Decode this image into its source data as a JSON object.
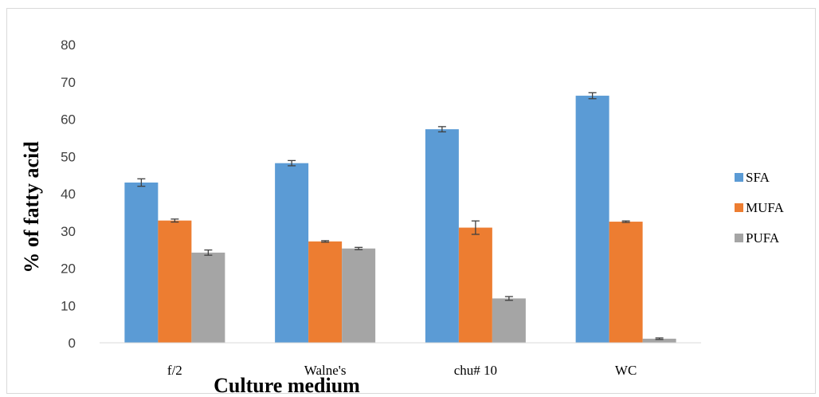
{
  "chart_data": {
    "type": "bar",
    "categories": [
      "f/2",
      "Walne's",
      "chu# 10",
      "WC"
    ],
    "series": [
      {
        "name": "SFA",
        "color": "#5b9bd5",
        "values": [
          43.0,
          48.2,
          57.3,
          66.3
        ],
        "errors": [
          1.0,
          0.7,
          0.7,
          0.8
        ]
      },
      {
        "name": "MUFA",
        "color": "#ed7d31",
        "values": [
          32.8,
          27.2,
          30.9,
          32.5
        ],
        "errors": [
          0.4,
          0.2,
          1.8,
          0.2
        ]
      },
      {
        "name": "PUFA",
        "color": "#a5a5a5",
        "values": [
          24.2,
          25.3,
          11.9,
          1.1
        ],
        "errors": [
          0.7,
          0.3,
          0.5,
          0.2
        ]
      }
    ],
    "xlabel": "Culture medium",
    "ylabel": "% of fatty acid",
    "ylim": [
      0,
      80
    ],
    "yticks": [
      0,
      10,
      20,
      30,
      40,
      50,
      60,
      70,
      80
    ],
    "grid": false,
    "legend_position": "right"
  }
}
